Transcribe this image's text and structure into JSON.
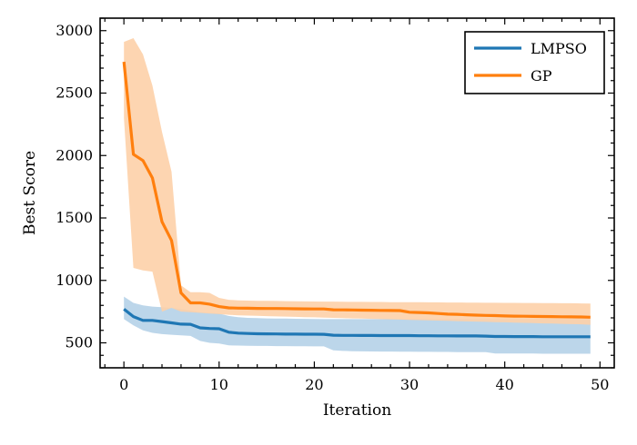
{
  "chart_data": {
    "type": "line",
    "title": "",
    "xlabel": "Iteration",
    "ylabel": "Best Score",
    "xlim": [
      -2.5,
      51.5
    ],
    "ylim": [
      300,
      3100
    ],
    "xticks": [
      0,
      10,
      20,
      30,
      40,
      50
    ],
    "yticks": [
      500,
      1000,
      1500,
      2000,
      2500,
      3000
    ],
    "legend_position": "top-right",
    "grid": false,
    "x": [
      0,
      1,
      2,
      3,
      4,
      5,
      6,
      7,
      8,
      9,
      10,
      11,
      12,
      13,
      14,
      15,
      16,
      17,
      18,
      19,
      20,
      21,
      22,
      23,
      24,
      25,
      26,
      27,
      28,
      29,
      30,
      31,
      32,
      33,
      34,
      35,
      36,
      37,
      38,
      39,
      40,
      41,
      42,
      43,
      44,
      45,
      46,
      47,
      48,
      49
    ],
    "series": [
      {
        "name": "LMPSO",
        "color": "#1f77b4",
        "band_color": "#b5d2e8",
        "values": [
          770,
          710,
          680,
          680,
          670,
          660,
          650,
          648,
          620,
          615,
          613,
          585,
          578,
          575,
          573,
          572,
          571,
          570,
          570,
          569,
          569,
          568,
          561,
          560,
          560,
          559,
          559,
          558,
          558,
          558,
          558,
          557,
          557,
          556,
          556,
          555,
          555,
          555,
          554,
          551,
          551,
          550,
          550,
          550,
          549,
          549,
          549,
          549,
          549,
          549
        ],
        "lower": [
          690,
          640,
          600,
          580,
          570,
          565,
          560,
          555,
          515,
          500,
          495,
          480,
          478,
          476,
          475,
          475,
          474,
          474,
          473,
          473,
          472,
          472,
          440,
          435,
          433,
          432,
          431,
          430,
          430,
          429,
          429,
          428,
          428,
          427,
          427,
          426,
          426,
          425,
          425,
          415,
          415,
          414,
          414,
          414,
          413,
          413,
          413,
          413,
          413,
          413
        ],
        "upper": [
          870,
          820,
          800,
          790,
          785,
          780,
          770,
          760,
          745,
          740,
          735,
          715,
          705,
          700,
          698,
          696,
          695,
          694,
          693,
          692,
          691,
          690,
          690,
          690,
          690,
          690,
          690,
          690,
          690,
          690,
          690,
          690,
          690,
          690,
          690,
          690,
          690,
          690,
          690,
          690,
          690,
          690,
          690,
          690,
          690,
          690,
          690,
          690,
          690,
          690
        ]
      },
      {
        "name": "GP",
        "color": "#ff7f0e",
        "band_color": "#fdd0a8",
        "values": [
          2750,
          2010,
          1960,
          1820,
          1470,
          1320,
          900,
          820,
          820,
          810,
          790,
          780,
          778,
          777,
          776,
          775,
          775,
          774,
          773,
          772,
          771,
          771,
          765,
          764,
          763,
          762,
          761,
          760,
          759,
          758,
          745,
          743,
          740,
          735,
          730,
          728,
          725,
          722,
          720,
          718,
          715,
          714,
          713,
          712,
          711,
          710,
          709,
          708,
          707,
          705
        ],
        "lower": [
          2300,
          1100,
          1080,
          1070,
          750,
          780,
          750,
          745,
          740,
          735,
          730,
          725,
          720,
          718,
          716,
          714,
          712,
          710,
          708,
          706,
          704,
          702,
          700,
          698,
          696,
          694,
          692,
          690,
          688,
          686,
          684,
          682,
          680,
          678,
          676,
          674,
          672,
          670,
          668,
          666,
          664,
          662,
          660,
          658,
          656,
          654,
          652,
          650,
          648,
          645
        ],
        "upper": [
          2910,
          2940,
          2810,
          2560,
          2190,
          1870,
          960,
          905,
          905,
          900,
          860,
          845,
          840,
          838,
          837,
          836,
          835,
          834,
          833,
          832,
          831,
          830,
          830,
          829,
          828,
          828,
          827,
          827,
          826,
          826,
          825,
          825,
          824,
          824,
          823,
          823,
          822,
          822,
          821,
          821,
          820,
          820,
          819,
          819,
          818,
          818,
          817,
          817,
          816,
          815
        ]
      }
    ]
  }
}
